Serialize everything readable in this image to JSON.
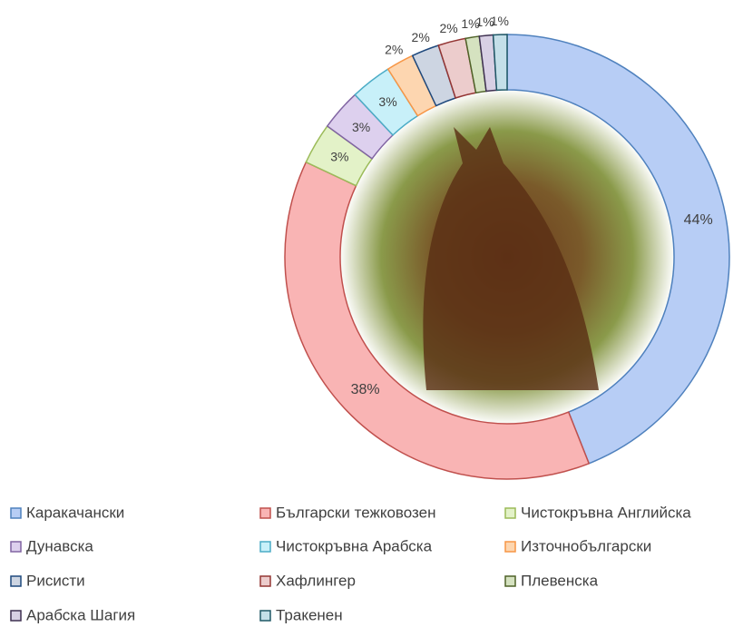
{
  "chart_data": {
    "type": "donut",
    "categories": [
      "Каракачански",
      "Български тежковозен",
      "Чистокръвна Английска",
      "Дунавска",
      "Чистокръвна Арабска",
      "Източнобългарски",
      "Рисисти",
      "Хафлингер",
      "Плевенска",
      "Арабска Шагия",
      "Тракенен"
    ],
    "values": [
      44,
      38,
      3,
      3,
      3,
      2,
      2,
      2,
      1,
      1,
      1
    ],
    "value_labels": [
      "44%",
      "38%",
      "3%",
      "3%",
      "3%",
      "2%",
      "2%",
      "2%",
      "1%",
      "1%",
      "1%"
    ],
    "colors": [
      "#4f81bd",
      "#c0504d",
      "#9bbb59",
      "#8064a2",
      "#4bacc6",
      "#f79646",
      "#1f497d",
      "#943634",
      "#4f6228",
      "#3f3151",
      "#205867"
    ],
    "fills": [
      "#b7cdf5",
      "#f9b4b4",
      "#e3f2c8",
      "#ddd0ee",
      "#c8f0f9",
      "#fdd6b0",
      "#cdd5e2",
      "#eccccc",
      "#d5e2c0",
      "#d8d0e4",
      "#c4dfe8"
    ],
    "legend": "bottom"
  }
}
